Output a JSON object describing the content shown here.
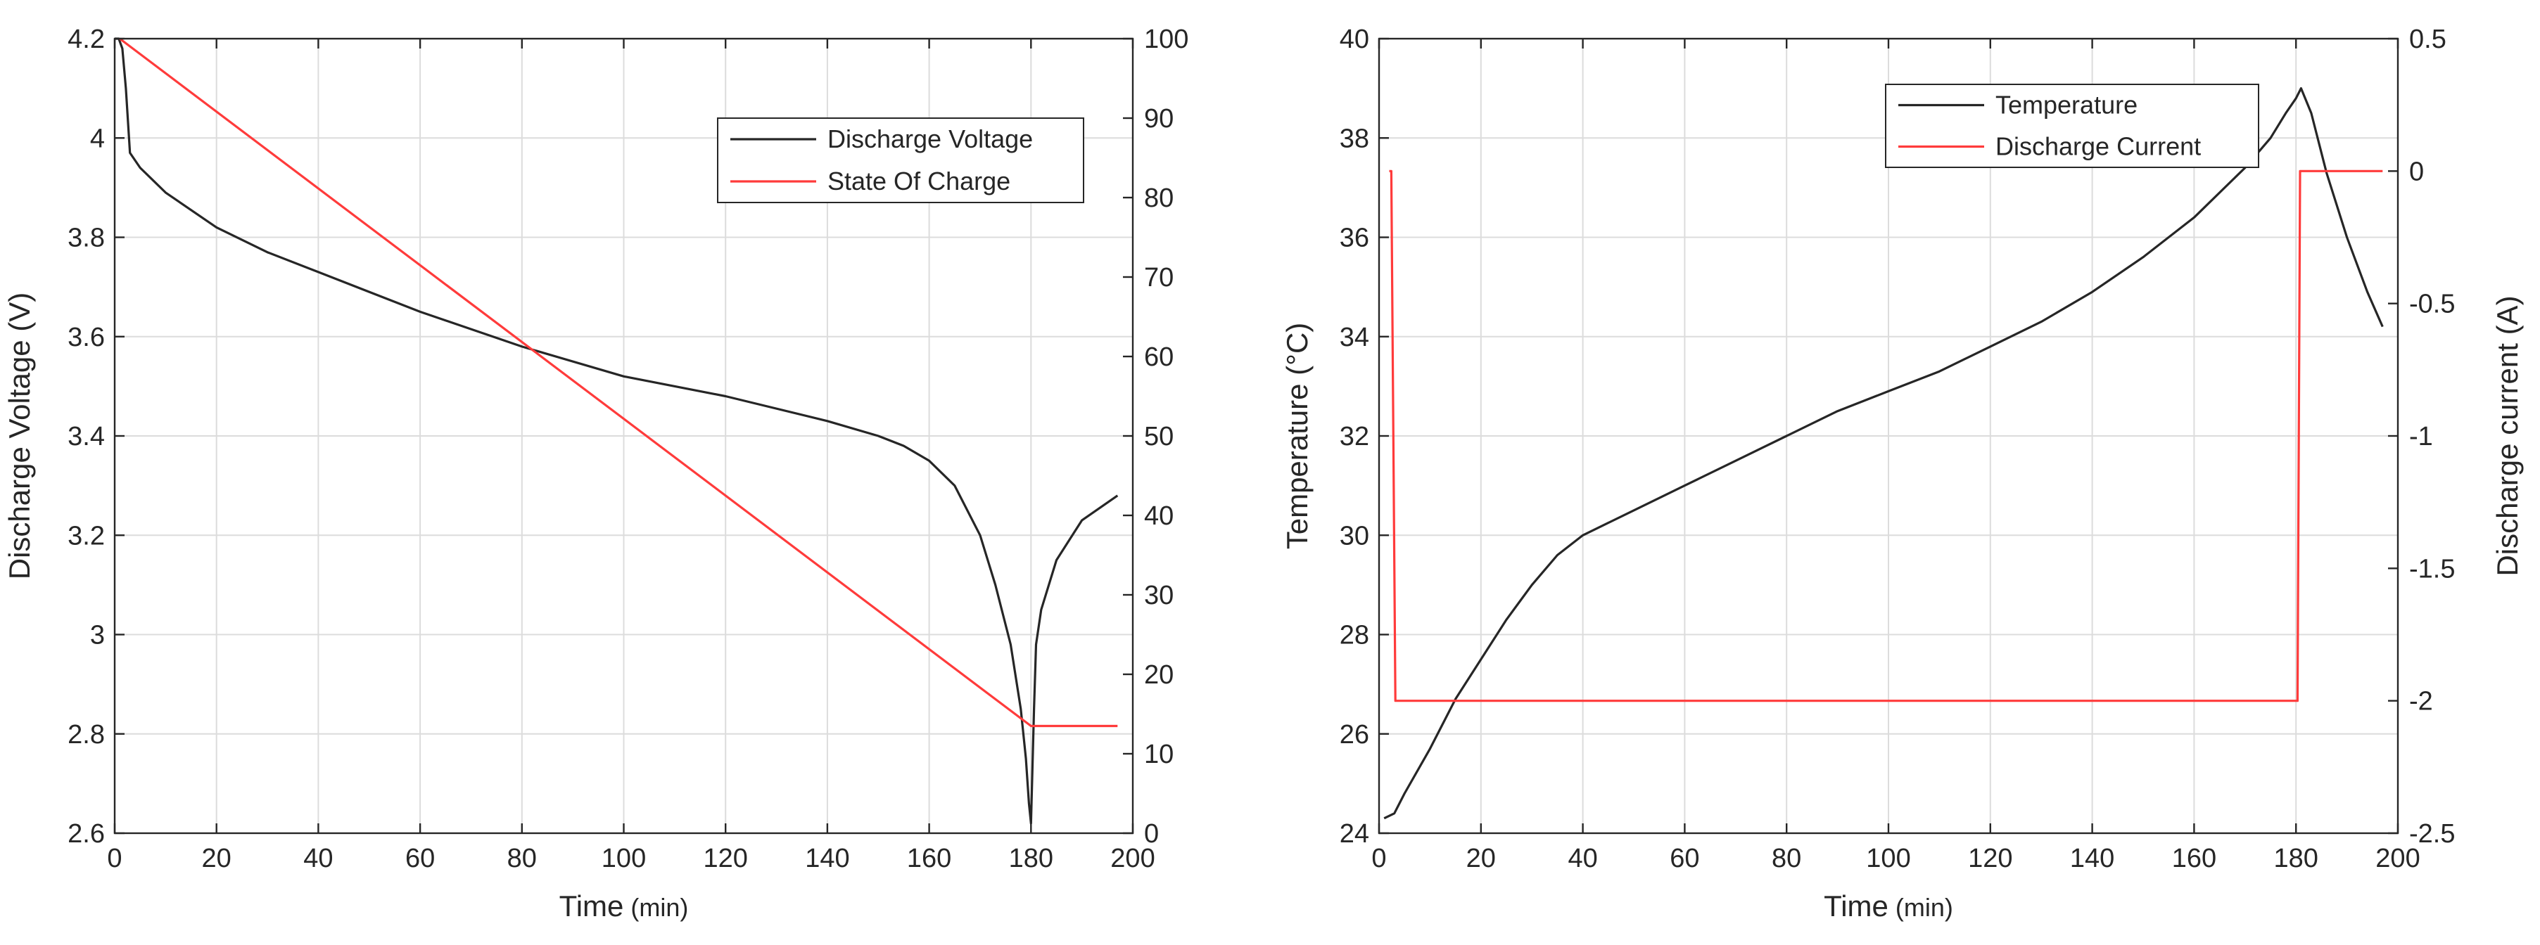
{
  "chart_data": [
    {
      "type": "line",
      "xlabel": "Time",
      "xlabel_unit": "(min)",
      "ylabel": "Discharge Voltage (V)",
      "y2label": "",
      "xlim": [
        0,
        200
      ],
      "ylim": [
        2.6,
        4.2
      ],
      "y2lim": [
        0,
        100
      ],
      "xticks": [
        0,
        20,
        40,
        60,
        80,
        100,
        120,
        140,
        160,
        180,
        200
      ],
      "yticks": [
        2.6,
        2.8,
        3,
        3.2,
        3.4,
        3.6,
        3.8,
        4,
        4.2
      ],
      "y2ticks": [
        0,
        10,
        20,
        30,
        40,
        50,
        60,
        70,
        80,
        90,
        100
      ],
      "grid": true,
      "legend_position": "top-right",
      "series": [
        {
          "name": "Discharge Voltage",
          "color": "#262626",
          "axis": "left",
          "x": [
            0,
            0.8,
            1.5,
            2.2,
            3,
            5,
            10,
            20,
            30,
            40,
            60,
            80,
            100,
            120,
            140,
            150,
            155,
            160,
            165,
            170,
            173,
            176,
            178,
            179,
            179.6,
            180,
            180.6,
            181,
            182,
            185,
            190,
            197
          ],
          "y": [
            4.2,
            4.2,
            4.18,
            4.1,
            3.97,
            3.94,
            3.89,
            3.82,
            3.77,
            3.73,
            3.65,
            3.58,
            3.52,
            3.48,
            3.43,
            3.4,
            3.38,
            3.35,
            3.3,
            3.2,
            3.1,
            2.98,
            2.85,
            2.75,
            2.66,
            2.62,
            2.85,
            2.98,
            3.05,
            3.15,
            3.23,
            3.28
          ]
        },
        {
          "name": "State Of Charge",
          "color": "#ff3b3b",
          "axis": "right",
          "x": [
            1,
            180,
            197
          ],
          "y": [
            100,
            13.5,
            13.5
          ]
        }
      ]
    },
    {
      "type": "line",
      "xlabel": "Time",
      "xlabel_unit": "(min)",
      "ylabel": "Temperature (°C)",
      "y2label": "Discharge current (A)",
      "xlim": [
        0,
        200
      ],
      "ylim": [
        24,
        40
      ],
      "y2lim": [
        -2.5,
        0.5
      ],
      "xticks": [
        0,
        20,
        40,
        60,
        80,
        100,
        120,
        140,
        160,
        180,
        200
      ],
      "yticks": [
        24,
        26,
        28,
        30,
        32,
        34,
        36,
        38,
        40
      ],
      "y2ticks": [
        -2.5,
        -2,
        -1.5,
        -1,
        -0.5,
        0,
        0.5
      ],
      "grid": true,
      "legend_position": "top-right",
      "series": [
        {
          "name": "Temperature",
          "color": "#262626",
          "axis": "left",
          "x": [
            1,
            2,
            3,
            5,
            10,
            15,
            20,
            25,
            30,
            35,
            40,
            45,
            50,
            60,
            70,
            80,
            90,
            100,
            110,
            120,
            130,
            140,
            150,
            160,
            170,
            175,
            178,
            180,
            181,
            183,
            186,
            190,
            194,
            197
          ],
          "y": [
            24.3,
            24.35,
            24.4,
            24.8,
            25.7,
            26.7,
            27.5,
            28.3,
            29.0,
            29.6,
            30.0,
            30.25,
            30.5,
            31.0,
            31.5,
            32.0,
            32.5,
            32.9,
            33.3,
            33.8,
            34.3,
            34.9,
            35.6,
            36.4,
            37.4,
            38.0,
            38.5,
            38.8,
            39.0,
            38.5,
            37.3,
            36.0,
            34.9,
            34.2
          ]
        },
        {
          "name": "Discharge Current",
          "color": "#ff3b3b",
          "axis": "right",
          "x": [
            2,
            2.4,
            3.2,
            20,
            40,
            60,
            80,
            100,
            120,
            140,
            160,
            180.3,
            180.8,
            197
          ],
          "y": [
            0,
            0,
            -2.0,
            -2.0,
            -2.0,
            -2.0,
            -2.0,
            -2.0,
            -2.0,
            -2.0,
            -2.0,
            -2.0,
            0,
            0
          ]
        }
      ]
    }
  ]
}
